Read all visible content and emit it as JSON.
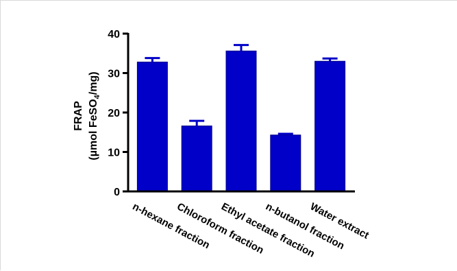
{
  "chart_data": {
    "type": "bar",
    "title": "",
    "xlabel": "",
    "ylabel_line1": "FRAP",
    "ylabel_line2_pre": "(µmol FeSO",
    "ylabel_line2_sub": "4",
    "ylabel_line2_post": "/mg)",
    "ylim": [
      0,
      40
    ],
    "yticks": [
      "0",
      "10",
      "20",
      "30",
      "40"
    ],
    "categories": [
      "n-hexane fraction",
      "Chloroform fraction",
      "Ethyl acetate fraction",
      "n-butanol fraction",
      "Water extract"
    ],
    "values": [
      32.8,
      16.6,
      35.6,
      14.3,
      33.0
    ],
    "errors": [
      1.0,
      1.3,
      1.5,
      0.3,
      0.7
    ],
    "bar_color": "#0000c8",
    "grid": false,
    "legend": "none"
  }
}
